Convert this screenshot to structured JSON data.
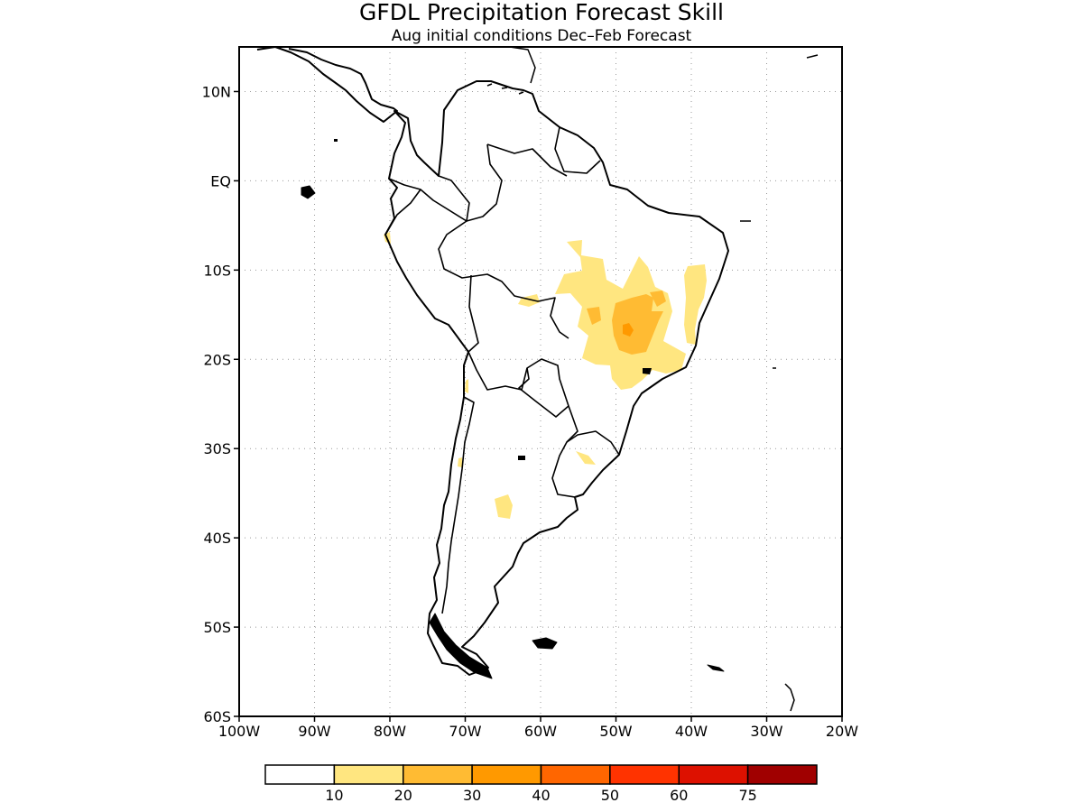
{
  "title": "GFDL Precipitation Forecast Skill",
  "subtitle": "Aug initial conditions  Dec–Feb Forecast",
  "map": {
    "lon_range": [
      -100,
      -20
    ],
    "lat_range": [
      -60,
      15
    ],
    "lat_ticks": [
      {
        "lat": 10,
        "label": "10N"
      },
      {
        "lat": 0,
        "label": "EQ"
      },
      {
        "lat": -10,
        "label": "10S"
      },
      {
        "lat": -20,
        "label": "20S"
      },
      {
        "lat": -30,
        "label": "30S"
      },
      {
        "lat": -40,
        "label": "40S"
      },
      {
        "lat": -50,
        "label": "50S"
      },
      {
        "lat": -60,
        "label": "60S"
      }
    ],
    "lon_ticks": [
      {
        "lon": -100,
        "label": "100W"
      },
      {
        "lon": -90,
        "label": "90W"
      },
      {
        "lon": -80,
        "label": "80W"
      },
      {
        "lon": -70,
        "label": "70W"
      },
      {
        "lon": -60,
        "label": "60W"
      },
      {
        "lon": -50,
        "label": "50W"
      },
      {
        "lon": -40,
        "label": "40W"
      },
      {
        "lon": -30,
        "label": "30W"
      },
      {
        "lon": -20,
        "label": "20W"
      }
    ],
    "grid": "dotted"
  },
  "colorbar": {
    "colors": [
      "#ffffff",
      "#ffe680",
      "#ffbb33",
      "#ff9900",
      "#ff6600",
      "#ff3300",
      "#dd1100",
      "#a00000"
    ],
    "labels": [
      "10",
      "20",
      "30",
      "40",
      "50",
      "60",
      "75"
    ]
  }
}
